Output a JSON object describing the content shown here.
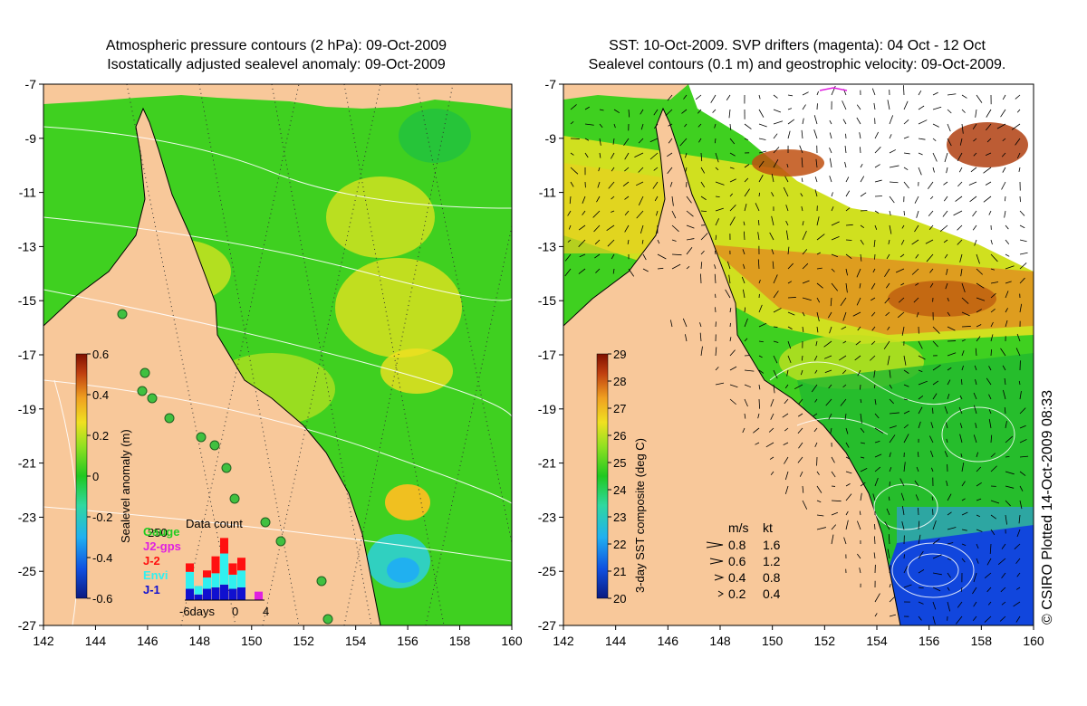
{
  "left_panel": {
    "title_line1": "Atmospheric pressure contours (2 hPa): 09-Oct-2009",
    "title_line2": "Isostatically adjusted sealevel anomaly: 09-Oct-2009",
    "lon_ticks": [
      "142",
      "144",
      "146",
      "148",
      "150",
      "152",
      "154",
      "156",
      "158",
      "160"
    ],
    "lat_ticks": [
      "-7",
      "-9",
      "-11",
      "-13",
      "-15",
      "-17",
      "-19",
      "-21",
      "-23",
      "-25",
      "-27"
    ],
    "colorbar": {
      "label": "Sealevel anomaly (m)",
      "ticks": [
        "0.6",
        "0.4",
        "0.2",
        "0",
        "-0.2",
        "-0.4",
        "-0.6"
      ],
      "range": [
        -0.6,
        0.6
      ]
    },
    "histogram": {
      "title": "Data count",
      "ymax_label": "250",
      "x_labels": [
        "-6days",
        "0",
        "4"
      ],
      "legend": [
        {
          "name": "Gauge",
          "color": "#22cc22"
        },
        {
          "name": "J2-gps",
          "color": "#e020e0"
        },
        {
          "name": "J-2",
          "color": "#ff1010"
        },
        {
          "name": "Envi",
          "color": "#30f0f0"
        },
        {
          "name": "J-1",
          "color": "#1010d0"
        }
      ],
      "bars": [
        {
          "day": -6,
          "J-1": 40,
          "Envi": 60,
          "J-2": 30
        },
        {
          "day": -5,
          "J-1": 20,
          "Envi": 30,
          "J-2": 0
        },
        {
          "day": -4,
          "J-1": 40,
          "Envi": 40,
          "J-2": 25
        },
        {
          "day": -3,
          "J-1": 45,
          "Envi": 50,
          "J-2": 60
        },
        {
          "day": -2,
          "J-1": 55,
          "Envi": 110,
          "J-2": 55
        },
        {
          "day": -1,
          "J-1": 40,
          "Envi": 50,
          "J-2": 40
        },
        {
          "day": 0,
          "J-1": 45,
          "Envi": 60,
          "J-2": 45
        },
        {
          "day": 1,
          "J-1": 0,
          "Envi": 0,
          "J-2": 0
        },
        {
          "day": 2,
          "J-2-gps": 30
        }
      ]
    }
  },
  "right_panel": {
    "title_line1": "SST: 10-Oct-2009. SVP drifters (magenta): 04 Oct - 12 Oct",
    "title_line2": "Sealevel contours (0.1 m) and geostrophic velocity: 09-Oct-2009.",
    "lon_ticks": [
      "142",
      "144",
      "146",
      "148",
      "150",
      "152",
      "154",
      "156",
      "158",
      "160"
    ],
    "lat_ticks": [
      "-7",
      "-9",
      "-11",
      "-13",
      "-15",
      "-17",
      "-19",
      "-21",
      "-23",
      "-25",
      "-27"
    ],
    "colorbar": {
      "label": "3-day SST composite (deg C)",
      "ticks": [
        "29",
        "28",
        "27",
        "26",
        "25",
        "24",
        "23",
        "22",
        "21",
        "20"
      ],
      "range": [
        20,
        29
      ]
    },
    "velocity_legend": {
      "header_ms": "m/s",
      "header_kt": "kt",
      "rows": [
        {
          "ms": "0.8",
          "kt": "1.6"
        },
        {
          "ms": "0.6",
          "kt": "1.2"
        },
        {
          "ms": "0.4",
          "kt": "0.8"
        },
        {
          "ms": "0.2",
          "kt": "0.4"
        }
      ]
    }
  },
  "credit": "© CSIRO Plotted 14-Oct-2009 08:33",
  "colors": {
    "land": "#f8c89a",
    "ocean_green": "#3fd020",
    "slope_yellow": "#d8e020",
    "sst_orange": "#e08018",
    "sst_blue": "#1040e0",
    "cloud": "#ffffff"
  }
}
